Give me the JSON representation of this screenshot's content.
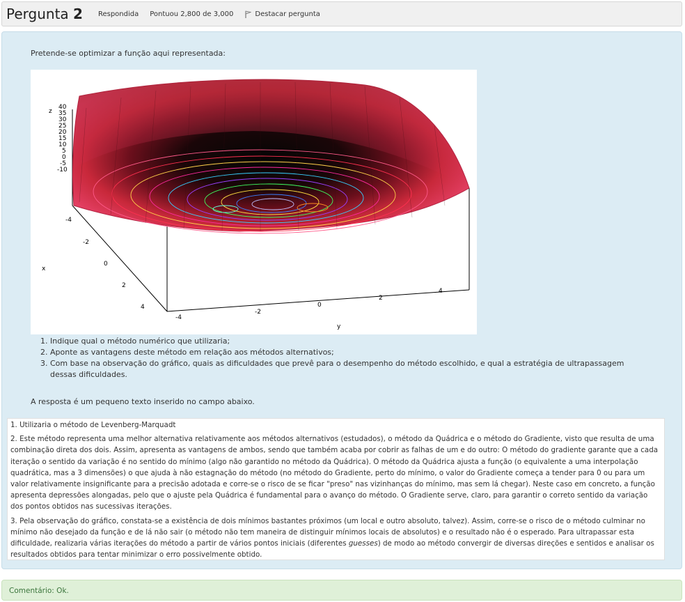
{
  "question": {
    "title_word": "Pergunta",
    "number": "2",
    "status": "Respondida",
    "score": "Pontuou 2,800 de 3,000",
    "flag_label": "Destacar pergunta"
  },
  "content": {
    "prompt": "Pretende-se optimizar a função aqui representada:",
    "tasks": [
      "Indique qual o método numérico que utilizaria;",
      "Aponte as vantagens deste método em relação aos métodos alternativos;",
      "Com base na observação do gráfico, quais as dificuldades que prevê para o desempenho do método escolhido, e qual a estratégia de ultrapassagem dessas dificuldades."
    ],
    "hint": "A resposta é um pequeno texto inserido no campo abaixo."
  },
  "figure": {
    "z_label": "z",
    "z_ticks": [
      "40",
      "35",
      "30",
      "25",
      "20",
      "15",
      "10",
      "5",
      "0",
      "-5",
      "-10"
    ],
    "x_label": "x",
    "x_ticks": [
      "-4",
      "-2",
      "0",
      "2",
      "4"
    ],
    "y_label": "y",
    "y_ticks": [
      "-4",
      "-2",
      "0",
      "2",
      "4"
    ]
  },
  "answer": {
    "p1": "1. Utilizaria o método de Levenberg-Marquadt",
    "p2": "2. Este método representa uma melhor alternativa relativamente aos métodos alternativos (estudados), o método da Quádrica e o método do Gradiente, visto que resulta de uma combinação direta dos dois. Assim, apresenta as vantagens de ambos, sendo que também acaba por cobrir as falhas de um e do outro: O método do gradiente garante que a cada iteração o sentido da variação é no sentido do mínimo (algo não garantido no método da Quádrica). O método da Quádrica ajusta a função (o equivalente a uma interpolação quadrática, mas a 3 dimensões) o que ajuda à não estagnação do método (no método do Gradiente, perto do mínimo, o valor do Gradiente começa a tender para 0 ou para um valor relativamente insignificante para a precisão adotada e corre-se o risco de se ficar \"preso\" nas vizinhanças do mínimo, mas sem lá chegar). Neste caso em concreto, a função apresenta depressões alongadas, pelo que o ajuste pela Quádrica é fundamental para o avanço do método. O Gradiente serve, claro, para garantir o correto sentido da variação dos pontos obtidos nas sucessivas iterações.",
    "p3_a": "3. Pela observação do gráfico, constata-se a existência de dois mínimos bastantes próximos (um local e outro absoluto, talvez). Assim, corre-se o risco de o método culminar no mínimo não desejado da função e de lá não sair (o método não tem maneira de distinguir mínimos locais de absolutos) e o resultado não é o esperado. Para ultrapassar esta dificuldade, realizaria várias iterações do método a partir de vários pontos iniciais (diferentes ",
    "p3_em": "guesses",
    "p3_b": ") de modo ao método convergir de diversas direções e sentidos e analisar os resultados obtidos para tentar minimizar o erro possivelmente obtido."
  },
  "feedback": "Comentário: Ok."
}
